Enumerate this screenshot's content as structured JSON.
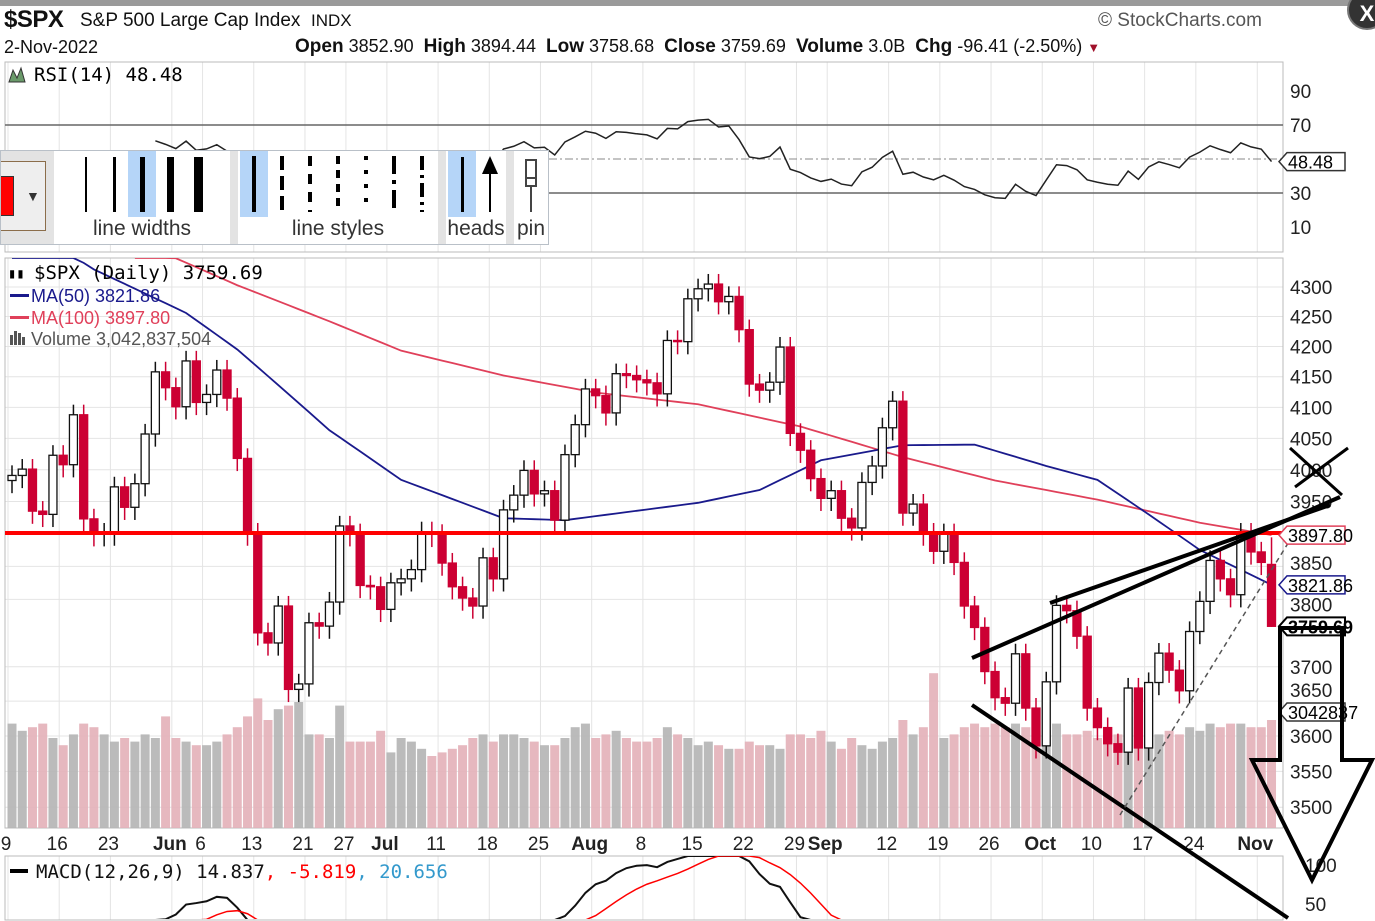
{
  "header": {
    "symbol": "$SPX",
    "name": "S&P 500 Large Cap Index",
    "exchange": "INDX",
    "date": "2-Nov-2022",
    "brand": "© StockCharts.com",
    "open_label": "Open",
    "open": "3852.90",
    "high_label": "High",
    "high": "3894.44",
    "low_label": "Low",
    "low": "3758.68",
    "close_label": "Close",
    "close": "3759.69",
    "volume_label": "Volume",
    "volume": "3.0B",
    "chg_label": "Chg",
    "chg": "-96.41 (-2.50%)",
    "chg_arrow": "▼",
    "close_button": "X"
  },
  "toolbar": {
    "line_widths_label": "line widths",
    "line_styles_label": "line styles",
    "heads_label": "heads",
    "pin_label": "pin",
    "selected_color": "#ff0000",
    "dropdown_icon": "▼"
  },
  "colors": {
    "up": "#111111",
    "down": "#cc0033",
    "ma50": "#1a1a8c",
    "ma100": "#e0405a",
    "vol_up": "#b4b4b4",
    "vol_down": "#e3b0b8",
    "level_line": "#ff0000"
  },
  "chart_data": {
    "type": "candlestick",
    "rsi_legend": "RSI(14) 48.48",
    "price_legend": "$SPX (Daily) 3759.69",
    "ma50_legend": "MA(50) 3821.86",
    "ma100_legend": "MA(100) 3897.80",
    "volume_legend": "Volume 3,042,837,504",
    "macd_legend_main": "MACD(12,26,9) 14.837",
    "macd_legend_signal": ", -5.819",
    "macd_legend_hist": ", 20.656",
    "price_scale": "log",
    "ylim": [
      3490,
      4330
    ],
    "price_ticks": [
      "4300",
      "4250",
      "4200",
      "4150",
      "4100",
      "4050",
      "4000",
      "3950",
      "3850",
      "3800",
      "3700",
      "3650",
      "3600",
      "3550",
      "3500"
    ],
    "rsi_ticks": [
      "90",
      "70",
      "30",
      "10"
    ],
    "macd_ticks": [
      "100",
      "50"
    ],
    "markers": {
      "ma100": "3897.80",
      "ma50": "3821.86",
      "close": "3759.69",
      "volume": "3042837",
      "rsi": "48.48"
    },
    "x_labels": [
      {
        "i": 0,
        "t": "9"
      },
      {
        "i": 5,
        "t": "16"
      },
      {
        "i": 10,
        "t": "23"
      },
      {
        "i": 16,
        "t": "Jun",
        "bold": true
      },
      {
        "i": 19,
        "t": "6"
      },
      {
        "i": 24,
        "t": "13"
      },
      {
        "i": 29,
        "t": "21"
      },
      {
        "i": 33,
        "t": "27"
      },
      {
        "i": 37,
        "t": "Jul",
        "bold": true
      },
      {
        "i": 42,
        "t": "11"
      },
      {
        "i": 47,
        "t": "18"
      },
      {
        "i": 52,
        "t": "25"
      },
      {
        "i": 57,
        "t": "Aug",
        "bold": true
      },
      {
        "i": 62,
        "t": "8"
      },
      {
        "i": 67,
        "t": "15"
      },
      {
        "i": 72,
        "t": "22"
      },
      {
        "i": 77,
        "t": "29"
      },
      {
        "i": 80,
        "t": "Sep",
        "bold": true
      },
      {
        "i": 86,
        "t": "12"
      },
      {
        "i": 91,
        "t": "19"
      },
      {
        "i": 96,
        "t": "26"
      },
      {
        "i": 101,
        "t": "Oct",
        "bold": true
      },
      {
        "i": 106,
        "t": "10"
      },
      {
        "i": 111,
        "t": "17"
      },
      {
        "i": 116,
        "t": "24"
      },
      {
        "i": 122,
        "t": "Nov",
        "bold": true
      }
    ],
    "closes": [
      3991,
      4001,
      3935,
      3930,
      4023,
      4008,
      4088,
      3923,
      3900,
      3901,
      3973,
      3941,
      3978,
      4057,
      4158,
      4132,
      4101,
      4176,
      4108,
      4121,
      4161,
      4115,
      4018,
      3901,
      3750,
      3735,
      3790,
      3667,
      3675,
      3765,
      3760,
      3796,
      3912,
      3900,
      3821,
      3819,
      3785,
      3825,
      3831,
      3845,
      3903,
      3899,
      3855,
      3819,
      3802,
      3790,
      3863,
      3831,
      3937,
      3960,
      3999,
      3962,
      3967,
      3921,
      4024,
      4072,
      4130,
      4119,
      4091,
      4155,
      4152,
      4145,
      4140,
      4122,
      4210,
      4208,
      4280,
      4297,
      4305,
      4275,
      4284,
      4228,
      4138,
      4128,
      4141,
      4199,
      4058,
      4031,
      3986,
      3955,
      3967,
      3924,
      3909,
      3980,
      4006,
      4067,
      4110,
      3932,
      3946,
      3901,
      3873,
      3900,
      3856,
      3790,
      3758,
      3693,
      3655,
      3647,
      3719,
      3640,
      3586,
      3678,
      3791,
      3783,
      3745,
      3640,
      3612,
      3589,
      3577,
      3669,
      3583,
      3677,
      3720,
      3695,
      3665,
      3752,
      3797,
      3859,
      3831,
      3807,
      3901,
      3872,
      3856,
      3759.69
    ],
    "last_bar": {
      "open": 3852.9,
      "high": 3894.44,
      "low": 3758.68,
      "close": 3759.69
    },
    "volume_b": [
      2.9,
      2.7,
      2.8,
      2.9,
      2.5,
      2.3,
      2.6,
      2.9,
      2.8,
      2.6,
      2.4,
      2.5,
      2.4,
      2.6,
      2.5,
      3.1,
      2.5,
      2.4,
      2.3,
      2.3,
      2.4,
      2.6,
      2.8,
      3.1,
      3.6,
      3.0,
      3.3,
      3.4,
      3.5,
      2.6,
      2.6,
      2.5,
      3.4,
      2.4,
      2.4,
      2.4,
      2.7,
      2.1,
      2.5,
      2.4,
      2.2,
      2.0,
      2.1,
      2.2,
      2.3,
      2.5,
      2.6,
      2.4,
      2.6,
      2.6,
      2.5,
      2.4,
      2.3,
      2.3,
      2.5,
      2.8,
      2.9,
      2.5,
      2.6,
      2.7,
      2.5,
      2.4,
      2.4,
      2.5,
      2.8,
      2.6,
      2.5,
      2.3,
      2.4,
      2.3,
      2.2,
      2.2,
      2.4,
      2.3,
      2.3,
      2.2,
      2.6,
      2.6,
      2.5,
      2.7,
      2.4,
      2.2,
      2.5,
      2.3,
      2.2,
      2.4,
      2.5,
      3.0,
      2.6,
      2.8,
      4.3,
      2.5,
      2.6,
      2.8,
      2.9,
      2.8,
      2.9,
      2.8,
      2.9,
      2.8,
      3.0,
      2.7,
      2.9,
      2.6,
      2.6,
      2.7,
      2.5,
      2.6,
      2.6,
      3.1,
      2.8,
      2.7,
      2.6,
      2.7,
      2.6,
      2.8,
      2.7,
      2.9,
      2.8,
      2.9,
      2.9,
      2.8,
      2.8,
      3.0
    ],
    "ma50": [
      [
        0,
        4420
      ],
      [
        8,
        4330
      ],
      [
        17,
        4256
      ],
      [
        22,
        4195
      ],
      [
        31,
        4063
      ],
      [
        38,
        3984
      ],
      [
        48,
        3924
      ],
      [
        54,
        3921
      ],
      [
        67,
        3948
      ],
      [
        73,
        3968
      ],
      [
        79,
        4015
      ],
      [
        87,
        4039
      ],
      [
        94,
        4040
      ],
      [
        101,
        4006
      ],
      [
        106,
        3984
      ],
      [
        111,
        3930
      ],
      [
        116,
        3875
      ],
      [
        123,
        3822
      ]
    ],
    "ma100": [
      [
        12,
        4380
      ],
      [
        22,
        4303
      ],
      [
        31,
        4242
      ],
      [
        38,
        4193
      ],
      [
        48,
        4152
      ],
      [
        57,
        4124
      ],
      [
        67,
        4105
      ],
      [
        77,
        4069
      ],
      [
        87,
        4020
      ],
      [
        96,
        3983
      ],
      [
        106,
        3953
      ],
      [
        116,
        3917
      ],
      [
        123,
        3898
      ]
    ]
  }
}
